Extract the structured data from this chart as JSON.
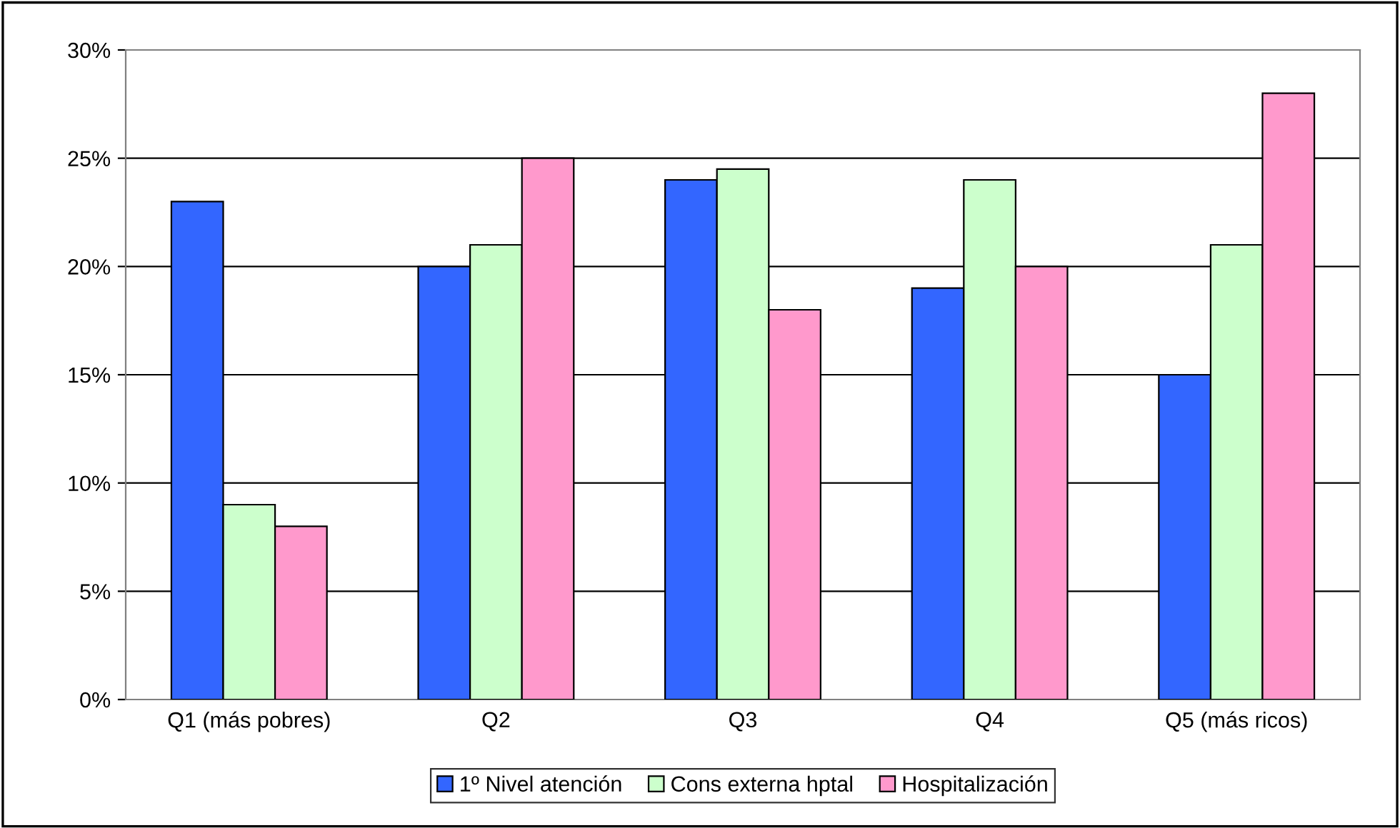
{
  "chart_data": {
    "type": "bar",
    "categories": [
      "Q1 (más pobres)",
      "Q2",
      "Q3",
      "Q4",
      "Q5 (más ricos)"
    ],
    "series": [
      {
        "name": "1º Nivel atención",
        "color": "#3366ff",
        "values": [
          23,
          20,
          24,
          19,
          15
        ]
      },
      {
        "name": "Cons externa hptal",
        "color": "#ccffcc",
        "values": [
          9,
          21,
          24.5,
          24,
          21
        ]
      },
      {
        "name": "Hospitalización",
        "color": "#ff99cc",
        "values": [
          8,
          25,
          18,
          20,
          28
        ]
      }
    ],
    "ylim": [
      0,
      30
    ],
    "yticks": [
      {
        "value": 0,
        "label": "0%"
      },
      {
        "value": 5,
        "label": "5%"
      },
      {
        "value": 10,
        "label": "10%"
      },
      {
        "value": 15,
        "label": "15%"
      },
      {
        "value": 20,
        "label": "20%"
      },
      {
        "value": 25,
        "label": "25%"
      },
      {
        "value": 30,
        "label": "30%"
      }
    ],
    "grid": "y",
    "legend": "bottom"
  }
}
